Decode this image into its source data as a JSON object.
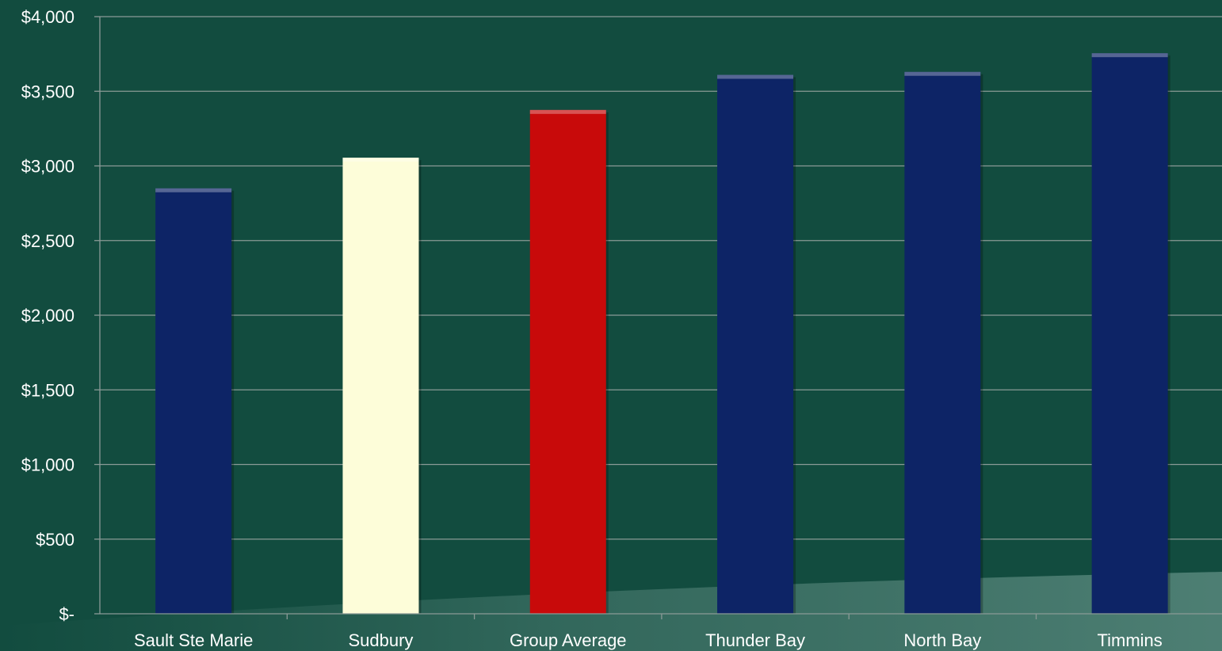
{
  "chart_data": {
    "type": "bar",
    "categories": [
      "Sault Ste Marie",
      "Sudbury",
      "Group Average",
      "Thunder Bay",
      "North Bay",
      "Timmins"
    ],
    "values": [
      2850,
      3055,
      3375,
      3610,
      3630,
      3755
    ],
    "ylim": [
      0,
      4000
    ],
    "yticks": [
      0,
      500,
      1000,
      1500,
      2000,
      2500,
      3000,
      3500,
      4000
    ],
    "ytick_labels": [
      "$-",
      "$500",
      "$1,000",
      "$1,500",
      "$2,000",
      "$2,500",
      "$3,000",
      "$3,500",
      "$4,000"
    ],
    "grid": true,
    "bar_colors": [
      "#0d2466",
      "#fdfdd9",
      "#c80a0a",
      "#0d2466",
      "#0d2466",
      "#0d2466"
    ],
    "background_color": "#124c3f"
  }
}
